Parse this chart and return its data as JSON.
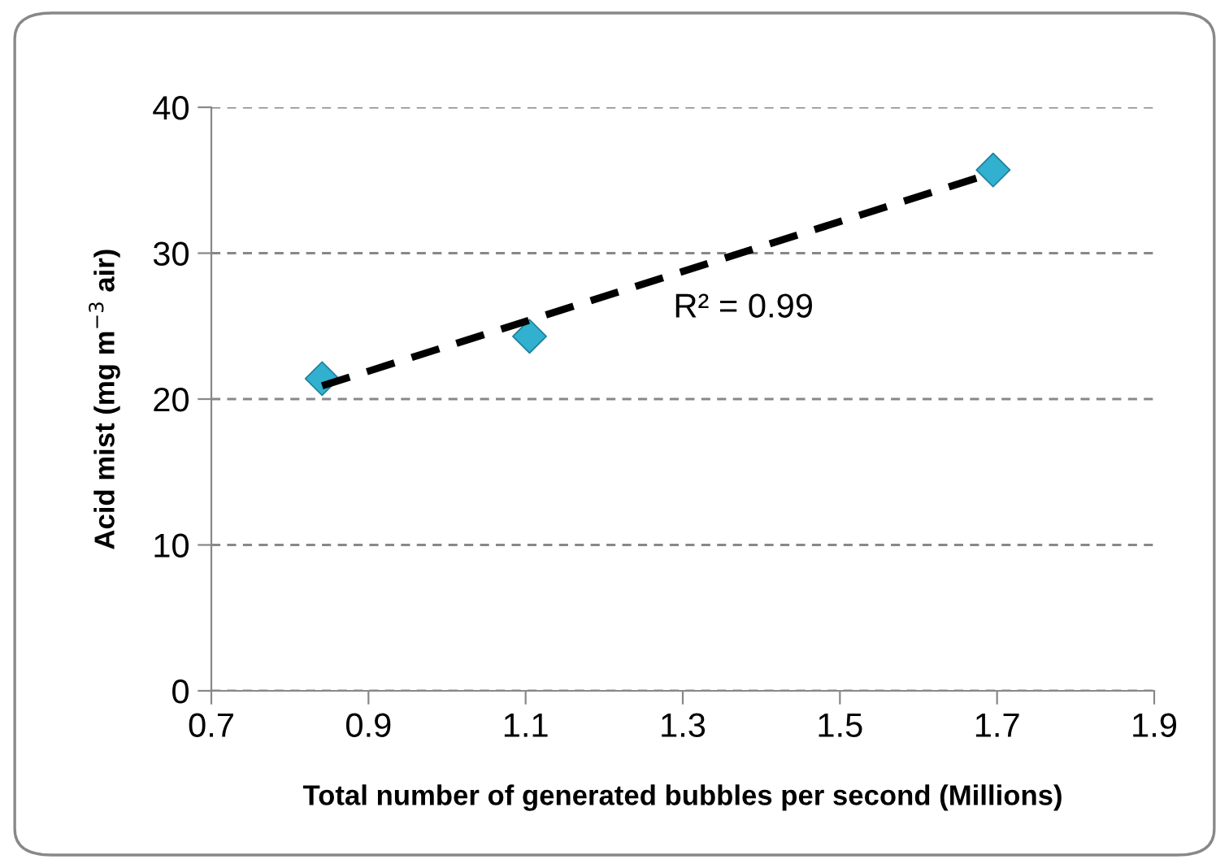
{
  "chart_data": {
    "type": "scatter",
    "xlabel": "Total number of generated bubbles per second (Millions)",
    "ylabel": "Acid mist (mg m$^{−3}$ air)",
    "series": [
      {
        "color": "#31b0d0",
        "marker": "diamond",
        "x": [
          0.841,
          1.105,
          1.695
        ],
        "values": [
          21.4,
          24.3,
          35.7
        ]
      },
      {
        "type": "line",
        "color": "#000000",
        "line_style": "dashed",
        "marker": "none",
        "x": [
          0.841,
          1.695
        ],
        "values": [
          20.9,
          35.5
        ]
      }
    ],
    "annotations": [
      "R² = 0.99"
    ],
    "xlim": [
      0.7,
      1.9
    ],
    "xticks": [
      0.7,
      0.9,
      1.1,
      1.3,
      1.5,
      1.7,
      1.9
    ],
    "ylim": [
      0,
      40
    ],
    "yticks": [
      0,
      10,
      20,
      30,
      40
    ],
    "grid": "y",
    "legend": false
  }
}
